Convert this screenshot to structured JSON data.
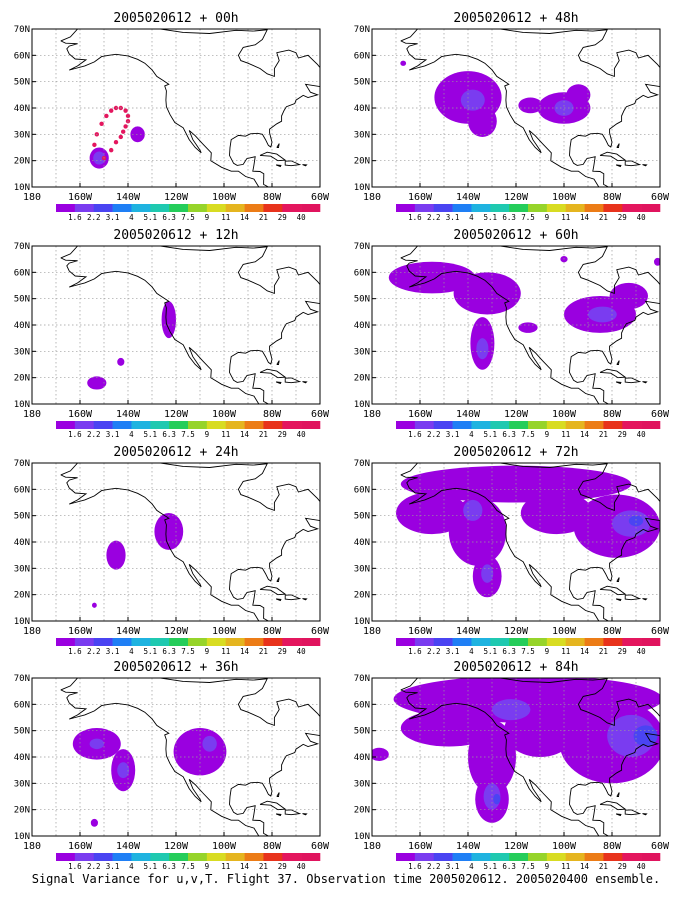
{
  "caption": "Signal Variance for u,v,T. Flight 37. Observation time 2005020612. 2005020400 ensemble.",
  "lat_labels": [
    "10N",
    "20N",
    "30N",
    "40N",
    "50N",
    "60N",
    "70N"
  ],
  "lon_labels": [
    "180",
    "160W",
    "140W",
    "120W",
    "100W",
    "80W",
    "60W"
  ],
  "colorbar": {
    "labels": [
      "1.6",
      "2.2",
      "3.1",
      "4",
      "5.1",
      "6.3",
      "7.5",
      "9",
      "11",
      "14",
      "21",
      "29",
      "40"
    ],
    "colors": [
      "#9a00e0",
      "#7a3cf0",
      "#4a44f2",
      "#1f7ff5",
      "#1fb3e0",
      "#1fc9b0",
      "#25cd5a",
      "#96d42a",
      "#d8dc22",
      "#e5b51f",
      "#ec7c16",
      "#e8331c",
      "#e4165e",
      "#e0145e"
    ]
  },
  "map": {
    "domain": {
      "lon_min": -180,
      "lon_max": -60,
      "lat_min": 10,
      "lat_max": 70
    },
    "coast_color": "#000000",
    "grid": "dotted",
    "shading_colors": {
      "level1": "#9a00e0",
      "level2": "#7a3cf0",
      "level3": "#4a44f2",
      "observation_marker": "#e4165e"
    }
  },
  "panels": [
    {
      "title": "2005020612 + 00h",
      "blobs": [
        {
          "lvl": 1,
          "lon": -152,
          "lat": 21,
          "rx": 4,
          "ry": 4
        },
        {
          "lvl": 2,
          "lon": -152,
          "lat": 21,
          "rx": 2.5,
          "ry": 2.5
        },
        {
          "lvl": 1,
          "lon": -136,
          "lat": 30,
          "rx": 3,
          "ry": 3
        }
      ],
      "track": [
        [
          -154,
          26
        ],
        [
          -153,
          30
        ],
        [
          -151,
          34
        ],
        [
          -149,
          37
        ],
        [
          -147,
          39
        ],
        [
          -145,
          40
        ],
        [
          -143,
          40
        ],
        [
          -141,
          39
        ],
        [
          -140,
          37
        ],
        [
          -140,
          35
        ],
        [
          -141,
          33
        ],
        [
          -142,
          31
        ],
        [
          -143,
          29
        ],
        [
          -145,
          27
        ],
        [
          -147,
          24
        ],
        [
          -150,
          21
        ]
      ]
    },
    {
      "title": "2005020612 + 12h",
      "blobs": [
        {
          "lvl": 1,
          "lon": -123,
          "lat": 42,
          "rx": 3,
          "ry": 7
        },
        {
          "lvl": 1,
          "lon": -153,
          "lat": 18,
          "rx": 4,
          "ry": 2.5
        },
        {
          "lvl": 1,
          "lon": -143,
          "lat": 26,
          "rx": 1.5,
          "ry": 1.5
        }
      ]
    },
    {
      "title": "2005020612 + 24h",
      "blobs": [
        {
          "lvl": 1,
          "lon": -123,
          "lat": 44,
          "rx": 6,
          "ry": 7
        },
        {
          "lvl": 1,
          "lon": -145,
          "lat": 35,
          "rx": 4,
          "ry": 5.5
        },
        {
          "lvl": 1,
          "lon": -154,
          "lat": 16,
          "rx": 1,
          "ry": 1
        }
      ]
    },
    {
      "title": "2005020612 + 36h",
      "blobs": [
        {
          "lvl": 1,
          "lon": -153,
          "lat": 45,
          "rx": 10,
          "ry": 6
        },
        {
          "lvl": 1,
          "lon": -142,
          "lat": 35,
          "rx": 5,
          "ry": 8
        },
        {
          "lvl": 2,
          "lon": -153,
          "lat": 45,
          "rx": 3,
          "ry": 2
        },
        {
          "lvl": 2,
          "lon": -142,
          "lat": 35,
          "rx": 2.5,
          "ry": 3
        },
        {
          "lvl": 1,
          "lon": -110,
          "lat": 42,
          "rx": 11,
          "ry": 9
        },
        {
          "lvl": 2,
          "lon": -106,
          "lat": 45,
          "rx": 3,
          "ry": 3
        },
        {
          "lvl": 1,
          "lon": -154,
          "lat": 15,
          "rx": 1.5,
          "ry": 1.5
        }
      ]
    },
    {
      "title": "2005020612 + 48h",
      "blobs": [
        {
          "lvl": 1,
          "lon": -140,
          "lat": 44,
          "rx": 14,
          "ry": 10
        },
        {
          "lvl": 1,
          "lon": -134,
          "lat": 35,
          "rx": 6,
          "ry": 6
        },
        {
          "lvl": 1,
          "lon": -100,
          "lat": 40,
          "rx": 11,
          "ry": 6
        },
        {
          "lvl": 1,
          "lon": -114,
          "lat": 41,
          "rx": 5,
          "ry": 3
        },
        {
          "lvl": 1,
          "lon": -94,
          "lat": 45,
          "rx": 5,
          "ry": 4
        },
        {
          "lvl": 2,
          "lon": -138,
          "lat": 43,
          "rx": 5,
          "ry": 4
        },
        {
          "lvl": 2,
          "lon": -100,
          "lat": 40,
          "rx": 4,
          "ry": 3
        },
        {
          "lvl": 1,
          "lon": -167,
          "lat": 57,
          "rx": 1.2,
          "ry": 1
        }
      ]
    },
    {
      "title": "2005020612 + 60h",
      "blobs": [
        {
          "lvl": 1,
          "lon": -155,
          "lat": 58,
          "rx": 18,
          "ry": 6
        },
        {
          "lvl": 1,
          "lon": -132,
          "lat": 52,
          "rx": 14,
          "ry": 8
        },
        {
          "lvl": 1,
          "lon": -134,
          "lat": 33,
          "rx": 5,
          "ry": 10
        },
        {
          "lvl": 2,
          "lon": -134,
          "lat": 31,
          "rx": 2.5,
          "ry": 4
        },
        {
          "lvl": 1,
          "lon": -85,
          "lat": 44,
          "rx": 15,
          "ry": 7
        },
        {
          "lvl": 1,
          "lon": -73,
          "lat": 51,
          "rx": 8,
          "ry": 5
        },
        {
          "lvl": 2,
          "lon": -84,
          "lat": 44,
          "rx": 6,
          "ry": 3
        },
        {
          "lvl": 1,
          "lon": -115,
          "lat": 39,
          "rx": 4,
          "ry": 2
        },
        {
          "lvl": 1,
          "lon": -100,
          "lat": 65,
          "rx": 1.5,
          "ry": 1.2
        },
        {
          "lvl": 1,
          "lon": -61,
          "lat": 64,
          "rx": 1.5,
          "ry": 1.5
        }
      ]
    },
    {
      "title": "2005020612 + 72h",
      "blobs": [
        {
          "lvl": 1,
          "lon": -120,
          "lat": 62,
          "rx": 48,
          "ry": 7
        },
        {
          "lvl": 1,
          "lon": -155,
          "lat": 51,
          "rx": 15,
          "ry": 8
        },
        {
          "lvl": 1,
          "lon": -136,
          "lat": 44,
          "rx": 12,
          "ry": 13
        },
        {
          "lvl": 1,
          "lon": -132,
          "lat": 27,
          "rx": 6,
          "ry": 8
        },
        {
          "lvl": 1,
          "lon": -103,
          "lat": 51,
          "rx": 15,
          "ry": 8
        },
        {
          "lvl": 1,
          "lon": -78,
          "lat": 46,
          "rx": 18,
          "ry": 12
        },
        {
          "lvl": 2,
          "lon": -72,
          "lat": 47,
          "rx": 8,
          "ry": 5
        },
        {
          "lvl": 2,
          "lon": -138,
          "lat": 52,
          "rx": 4,
          "ry": 4
        },
        {
          "lvl": 2,
          "lon": -132,
          "lat": 28,
          "rx": 2.5,
          "ry": 3.5
        },
        {
          "lvl": 3,
          "lon": -70,
          "lat": 48,
          "rx": 3,
          "ry": 2
        }
      ]
    },
    {
      "title": "2005020612 + 84h",
      "blobs": [
        {
          "lvl": 1,
          "lon": -115,
          "lat": 62,
          "rx": 56,
          "ry": 9
        },
        {
          "lvl": 1,
          "lon": -148,
          "lat": 51,
          "rx": 20,
          "ry": 7
        },
        {
          "lvl": 1,
          "lon": -130,
          "lat": 40,
          "rx": 10,
          "ry": 14
        },
        {
          "lvl": 1,
          "lon": -130,
          "lat": 24,
          "rx": 7,
          "ry": 9
        },
        {
          "lvl": 1,
          "lon": -110,
          "lat": 50,
          "rx": 15,
          "ry": 10
        },
        {
          "lvl": 1,
          "lon": -80,
          "lat": 46,
          "rx": 22,
          "ry": 16
        },
        {
          "lvl": 1,
          "lon": -177,
          "lat": 41,
          "rx": 4,
          "ry": 2.5
        },
        {
          "lvl": 2,
          "lon": -130,
          "lat": 25,
          "rx": 3.5,
          "ry": 5
        },
        {
          "lvl": 2,
          "lon": -122,
          "lat": 58,
          "rx": 8,
          "ry": 4
        },
        {
          "lvl": 2,
          "lon": -72,
          "lat": 48,
          "rx": 10,
          "ry": 8
        },
        {
          "lvl": 3,
          "lon": -66,
          "lat": 48,
          "rx": 5,
          "ry": 4
        },
        {
          "lvl": 3,
          "lon": -128,
          "lat": 24,
          "rx": 1.5,
          "ry": 2
        }
      ]
    }
  ]
}
